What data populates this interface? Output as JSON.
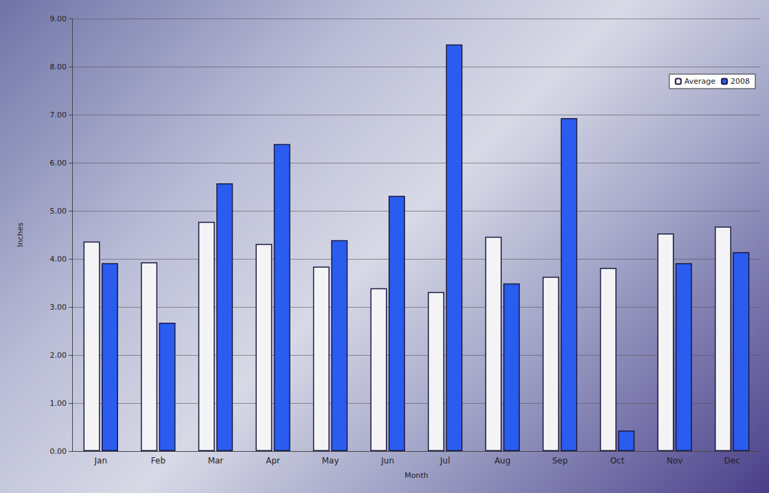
{
  "chart_data": {
    "type": "bar",
    "x_label": "Month",
    "y_label": "Inches",
    "categories": [
      "Jan",
      "Feb",
      "Mar",
      "Apr",
      "May",
      "Jun",
      "Jul",
      "Aug",
      "Sep",
      "Oct",
      "Nov",
      "Dec"
    ],
    "series": [
      {
        "name": "Average",
        "color": "#f4f4f6",
        "values": [
          4.36,
          3.93,
          4.77,
          4.31,
          3.84,
          3.39,
          3.31,
          4.46,
          3.63,
          3.81,
          4.53,
          4.67
        ]
      },
      {
        "name": "2008",
        "color": "#2a5cf0",
        "values": [
          3.91,
          2.67,
          5.57,
          6.39,
          4.39,
          5.31,
          8.46,
          3.49,
          6.93,
          0.43,
          3.91,
          4.14
        ]
      }
    ],
    "ylim": [
      0,
      9
    ],
    "yticks": [
      {
        "value": 0,
        "label": "0.00"
      },
      {
        "value": 1,
        "label": "1.00"
      },
      {
        "value": 2,
        "label": "2.00"
      },
      {
        "value": 3,
        "label": "3.00"
      },
      {
        "value": 4,
        "label": "4.00"
      },
      {
        "value": 5,
        "label": "5.00"
      },
      {
        "value": 6,
        "label": "6.00"
      },
      {
        "value": 7,
        "label": "7.00"
      },
      {
        "value": 8,
        "label": "8.00"
      },
      {
        "value": 9,
        "label": "9.00"
      }
    ],
    "grid": true,
    "legend": "top-right"
  }
}
